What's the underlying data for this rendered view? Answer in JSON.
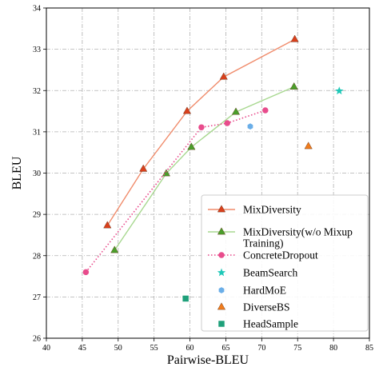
{
  "chart_data": {
    "type": "scatter",
    "xlabel": "Pairwise-BLEU",
    "ylabel": "BLEU",
    "xlim": [
      40,
      85
    ],
    "ylim": [
      26,
      34
    ],
    "xticks": [
      "40",
      "45",
      "50",
      "55",
      "60",
      "65",
      "70",
      "75",
      "80",
      "85"
    ],
    "yticks": [
      "26",
      "27",
      "28",
      "29",
      "30",
      "31",
      "32",
      "33",
      "34"
    ],
    "grid": true,
    "legend_position": "lower-right",
    "series": [
      {
        "name": "MixDiversity",
        "legend_lines": [
          "MixDiversity"
        ],
        "style": "solid-line",
        "marker": "triangle",
        "color": "#f08c6c",
        "marker_color": "#d9401c",
        "points": [
          [
            48.5,
            28.73
          ],
          [
            53.5,
            30.1
          ],
          [
            59.6,
            31.5
          ],
          [
            64.7,
            32.33
          ],
          [
            74.6,
            33.24
          ]
        ]
      },
      {
        "name": "MixDiversity(w/o Mixup Training)",
        "legend_lines": [
          "MixDiversity(w/o Mixup",
          "Training)"
        ],
        "style": "solid-line",
        "marker": "triangle",
        "color": "#a8d890",
        "marker_color": "#4a9e2a",
        "points": [
          [
            49.5,
            28.13
          ],
          [
            56.7,
            29.99
          ],
          [
            60.2,
            30.63
          ],
          [
            66.4,
            31.48
          ],
          [
            74.5,
            32.09
          ]
        ]
      },
      {
        "name": "ConcreteDropout",
        "legend_lines": [
          "ConcreteDropout"
        ],
        "style": "dotted-line",
        "marker": "circle",
        "color": "#e8488a",
        "marker_color": "#e84c8c",
        "points": [
          [
            45.5,
            27.6
          ],
          [
            61.6,
            31.11
          ],
          [
            65.2,
            31.21
          ],
          [
            70.5,
            31.52
          ]
        ]
      },
      {
        "name": "BeamSearch",
        "legend_lines": [
          "BeamSearch"
        ],
        "style": "none",
        "marker": "star",
        "color": "#1ec8b8",
        "marker_color": "#1ec8b8",
        "points": [
          [
            80.8,
            31.99
          ]
        ]
      },
      {
        "name": "HardMoE",
        "legend_lines": [
          "HardMoE"
        ],
        "style": "none",
        "marker": "hexagon",
        "color": "#6aaee8",
        "marker_color": "#6aaee8",
        "points": [
          [
            68.4,
            31.13
          ]
        ]
      },
      {
        "name": "DiverseBS",
        "legend_lines": [
          "DiverseBS"
        ],
        "style": "none",
        "marker": "triangle",
        "color": "#f07c1c",
        "marker_color": "#f07c1c",
        "points": [
          [
            76.5,
            30.65
          ]
        ]
      },
      {
        "name": "HeadSample",
        "legend_lines": [
          "HeadSample"
        ],
        "style": "none",
        "marker": "square",
        "color": "#1ea07a",
        "marker_color": "#1ea07a",
        "points": [
          [
            59.4,
            26.96
          ]
        ]
      }
    ]
  }
}
